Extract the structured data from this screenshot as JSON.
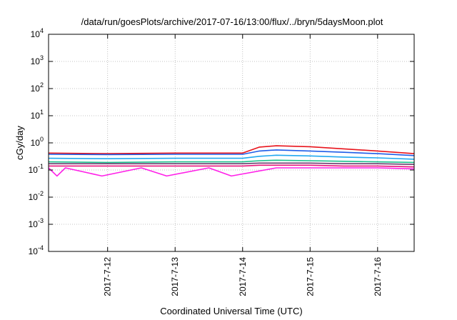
{
  "chart_data": {
    "type": "line",
    "title": "/data/run/goesPlots/archive/2017-07-16/13:00/flux/../bryn/5daysMoon.plot",
    "xlabel": "Coordinated Universal Time (UTC)",
    "ylabel": "cGy/day",
    "yscale": "log",
    "ylim": [
      0.0001,
      10000
    ],
    "xlim": [
      "2017-07-11 03:00",
      "2017-07-16 13:00"
    ],
    "x_ticks": [
      "2017-7-12",
      "2017-7-13",
      "2017-7-14",
      "2017-7-15",
      "2017-7-16"
    ],
    "y_ticks": [
      {
        "base": "10",
        "exp": "-4"
      },
      {
        "base": "10",
        "exp": "-3"
      },
      {
        "base": "10",
        "exp": "-2"
      },
      {
        "base": "10",
        "exp": "-1"
      },
      {
        "base": "10",
        "exp": "0"
      },
      {
        "base": "10",
        "exp": "1"
      },
      {
        "base": "10",
        "exp": "2"
      },
      {
        "base": "10",
        "exp": "3"
      },
      {
        "base": "10",
        "exp": "4"
      }
    ],
    "grid": true,
    "legend": "none",
    "series": [
      {
        "color": "#e8141c",
        "x": [
          "2017-07-11 03:00",
          "2017-07-12 00:00",
          "2017-07-13 00:00",
          "2017-07-14 00:00",
          "2017-07-14 06:00",
          "2017-07-14 12:00",
          "2017-07-15 00:00",
          "2017-07-15 12:00",
          "2017-07-16 00:00",
          "2017-07-16 13:00"
        ],
        "y": [
          0.42,
          0.4,
          0.42,
          0.42,
          0.7,
          0.78,
          0.72,
          0.6,
          0.5,
          0.4
        ]
      },
      {
        "color": "#1e5de8",
        "x": [
          "2017-07-11 03:00",
          "2017-07-12 00:00",
          "2017-07-13 00:00",
          "2017-07-14 00:00",
          "2017-07-14 06:00",
          "2017-07-14 12:00",
          "2017-07-15 00:00",
          "2017-07-15 12:00",
          "2017-07-16 00:00",
          "2017-07-16 13:00"
        ],
        "y": [
          0.38,
          0.37,
          0.38,
          0.38,
          0.5,
          0.55,
          0.5,
          0.45,
          0.4,
          0.34
        ]
      },
      {
        "color": "#21a9f0",
        "x": [
          "2017-07-11 03:00",
          "2017-07-12 00:00",
          "2017-07-13 00:00",
          "2017-07-14 00:00",
          "2017-07-14 06:00",
          "2017-07-14 12:00",
          "2017-07-15 00:00",
          "2017-07-15 12:00",
          "2017-07-16 00:00",
          "2017-07-16 13:00"
        ],
        "y": [
          0.27,
          0.26,
          0.27,
          0.27,
          0.32,
          0.35,
          0.33,
          0.3,
          0.28,
          0.25
        ]
      },
      {
        "color": "#1cc08c",
        "x": [
          "2017-07-11 03:00",
          "2017-07-12 00:00",
          "2017-07-13 00:00",
          "2017-07-14 00:00",
          "2017-07-14 06:00",
          "2017-07-14 12:00",
          "2017-07-15 00:00",
          "2017-07-15 12:00",
          "2017-07-16 00:00",
          "2017-07-16 13:00"
        ],
        "y": [
          0.2,
          0.19,
          0.2,
          0.2,
          0.22,
          0.23,
          0.22,
          0.21,
          0.2,
          0.19
        ]
      },
      {
        "color": "#6a3d6e",
        "x": [
          "2017-07-11 03:00",
          "2017-07-12 00:00",
          "2017-07-13 00:00",
          "2017-07-14 00:00",
          "2017-07-14 06:00",
          "2017-07-14 12:00",
          "2017-07-15 00:00",
          "2017-07-15 12:00",
          "2017-07-16 00:00",
          "2017-07-16 13:00"
        ],
        "y": [
          0.17,
          0.17,
          0.17,
          0.17,
          0.18,
          0.18,
          0.18,
          0.17,
          0.17,
          0.16
        ]
      },
      {
        "color": "#e8147a",
        "x": [
          "2017-07-11 03:00",
          "2017-07-12 00:00",
          "2017-07-13 00:00",
          "2017-07-14 00:00",
          "2017-07-14 06:00",
          "2017-07-14 12:00",
          "2017-07-15 00:00",
          "2017-07-15 12:00",
          "2017-07-16 00:00",
          "2017-07-16 13:00"
        ],
        "y": [
          0.14,
          0.14,
          0.14,
          0.14,
          0.15,
          0.15,
          0.15,
          0.14,
          0.14,
          0.13
        ]
      },
      {
        "color": "#ff20e8",
        "x": [
          "2017-07-11 03:00",
          "2017-07-11 06:00",
          "2017-07-11 09:00",
          "2017-07-11 22:00",
          "2017-07-12 12:00",
          "2017-07-12 21:00",
          "2017-07-13 12:00",
          "2017-07-13 20:00",
          "2017-07-14 12:00",
          "2017-07-15 00:00",
          "2017-07-15 12:00",
          "2017-07-16 00:00",
          "2017-07-16 13:00"
        ],
        "y": [
          0.12,
          0.06,
          0.12,
          0.06,
          0.12,
          0.06,
          0.12,
          0.06,
          0.12,
          0.12,
          0.12,
          0.12,
          0.11
        ]
      }
    ]
  }
}
